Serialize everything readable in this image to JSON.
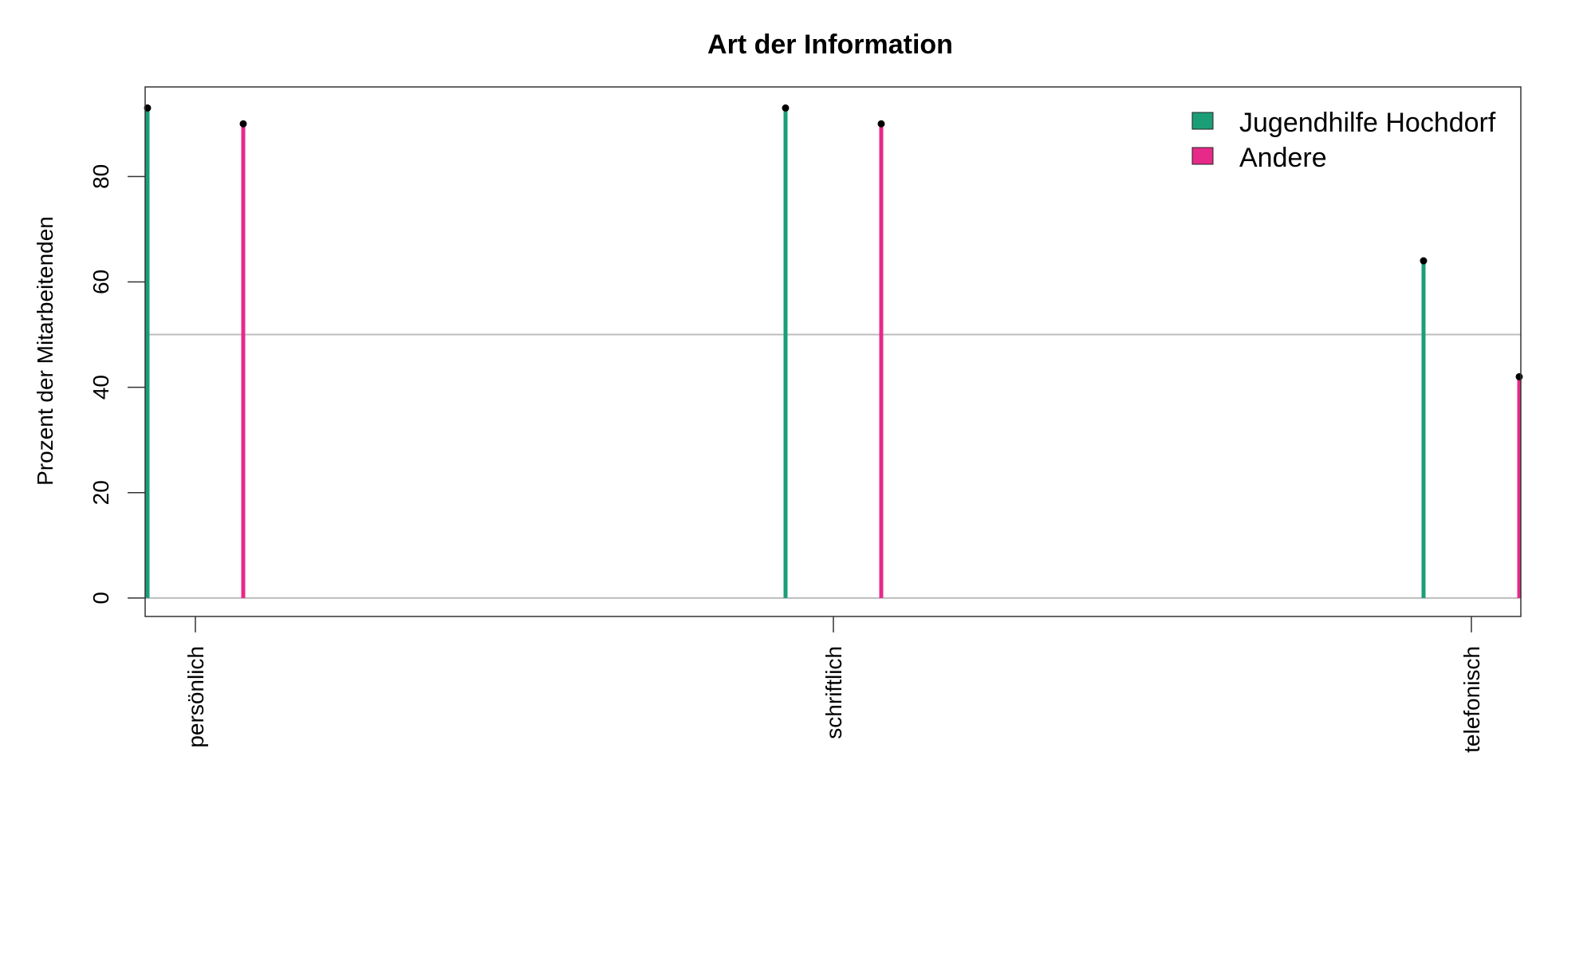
{
  "chart_data": {
    "type": "bar",
    "title": "Art der Information",
    "xlabel": "",
    "ylabel": "Prozent der Mitarbeitenden",
    "categories": [
      "persönlich",
      "schriftlich",
      "telefonisch"
    ],
    "series": [
      {
        "name": "Jugendhilfe Hochdorf",
        "color": "#1B9E77",
        "values": [
          93,
          93,
          64
        ]
      },
      {
        "name": "Andere",
        "color": "#E7298A",
        "values": [
          90,
          90,
          42
        ]
      }
    ],
    "ylim": [
      -3.5,
      97
    ],
    "yticks": [
      0,
      20,
      40,
      60,
      80
    ],
    "reference_lines": [
      0,
      50
    ],
    "legend_position": "top-right",
    "grid": false
  }
}
